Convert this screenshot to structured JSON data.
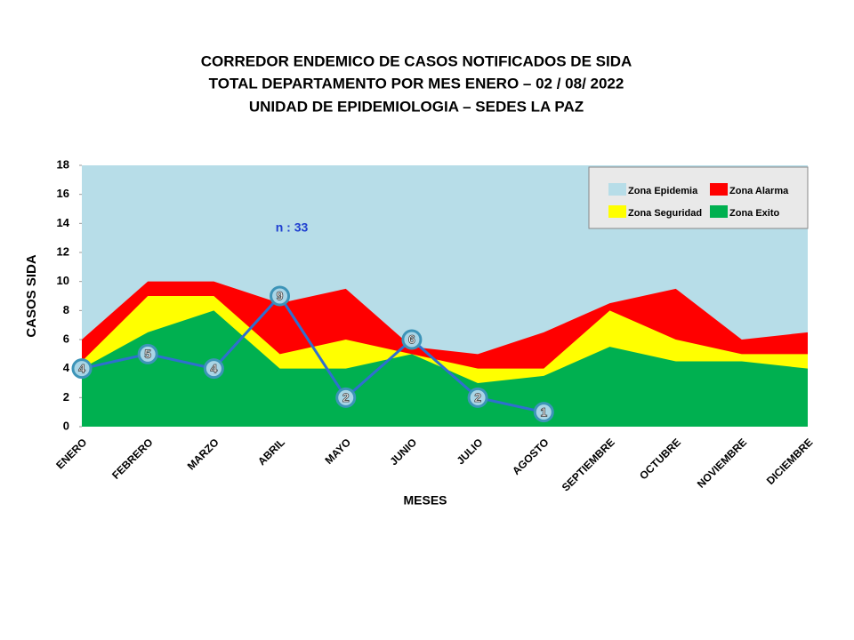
{
  "chart_data": {
    "type": "area",
    "title": [
      "CORREDOR ENDEMICO  DE CASOS NOTIFICADOS  DE SIDA",
      "TOTAL DEPARTAMENTO  POR MES ENERO  – 02 / 08/ 2022",
      "UNIDAD  DE EPIDEMIOLOGIA  – SEDES LA PAZ"
    ],
    "x_label": "MESES",
    "y_label": "CASOS SIDA",
    "annotation": "n : 33",
    "categories": [
      "ENERO",
      "FEBRERO",
      "MARZO",
      "ABRIL",
      "MAYO",
      "JUNIO",
      "JULIO",
      "AGOSTO",
      "SEPTIEMBRE",
      "OCTUBRE",
      "NOVIEMBRE",
      "DICIEMBRE"
    ],
    "background_zone": {
      "name": "Zona Epidemia",
      "color": "#b7dde8"
    },
    "series": [
      {
        "name": "Zona Alarma",
        "color": "#ff0000",
        "values": [
          6,
          10,
          10,
          8.5,
          9.5,
          5.5,
          5,
          6.5,
          8.5,
          9.5,
          6,
          6.5
        ]
      },
      {
        "name": "Zona Seguridad",
        "color": "#ffff00",
        "values": [
          4.5,
          9,
          9,
          5,
          6,
          5,
          4,
          4,
          8,
          6,
          5,
          5
        ]
      },
      {
        "name": "Zona Exito",
        "color": "#00b050",
        "values": [
          4,
          6.5,
          8,
          4,
          4,
          5,
          3,
          3.5,
          5.5,
          4.5,
          4.5,
          4
        ]
      }
    ],
    "cases": {
      "type": "line",
      "color": "#2f6fcf",
      "values": [
        4,
        5,
        4,
        9,
        2,
        6,
        2,
        1,
        null,
        null,
        null,
        null
      ]
    },
    "ylim": [
      0,
      18
    ],
    "yticks": [
      0,
      2,
      4,
      6,
      8,
      10,
      12,
      14,
      16,
      18
    ],
    "legend": "upper right"
  }
}
